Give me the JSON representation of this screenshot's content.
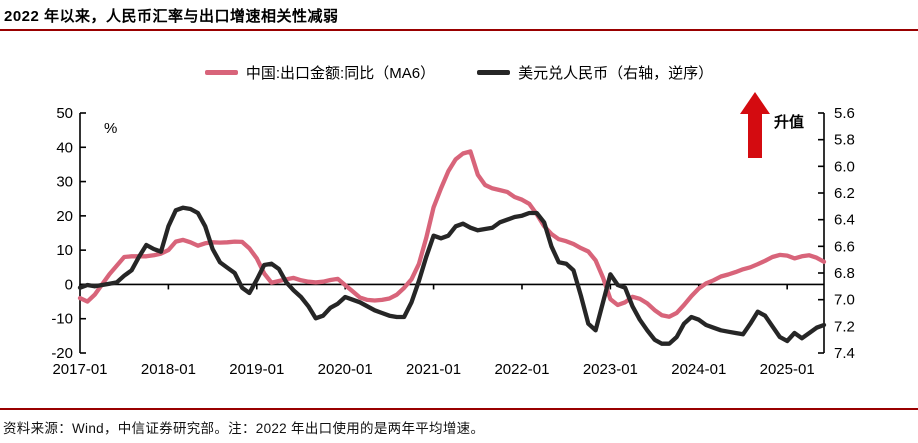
{
  "title": "2022 年以来，人民币汇率与出口增速相关性减弱",
  "source_note": "资料来源：Wind，中信证券研究部。注：2022 年出口使用的是两年平均增速。",
  "colors": {
    "accent_rule": "#990000",
    "export_line": "#d8647a",
    "usdcny_line": "#262626",
    "arrow_red": "#d40b10",
    "text": "#000000"
  },
  "chart_data": {
    "type": "line",
    "grid": false,
    "legend_position": "top",
    "x": [
      "2017-01",
      "2017-02",
      "2017-03",
      "2017-04",
      "2017-05",
      "2017-06",
      "2017-07",
      "2017-08",
      "2017-09",
      "2017-10",
      "2017-11",
      "2017-12",
      "2018-01",
      "2018-02",
      "2018-03",
      "2018-04",
      "2018-05",
      "2018-06",
      "2018-07",
      "2018-08",
      "2018-09",
      "2018-10",
      "2018-11",
      "2018-12",
      "2019-01",
      "2019-02",
      "2019-03",
      "2019-04",
      "2019-05",
      "2019-06",
      "2019-07",
      "2019-08",
      "2019-09",
      "2019-10",
      "2019-11",
      "2019-12",
      "2020-01",
      "2020-02",
      "2020-03",
      "2020-04",
      "2020-05",
      "2020-06",
      "2020-07",
      "2020-08",
      "2020-09",
      "2020-10",
      "2020-11",
      "2020-12",
      "2021-01",
      "2021-02",
      "2021-03",
      "2021-04",
      "2021-05",
      "2021-06",
      "2021-07",
      "2021-08",
      "2021-09",
      "2021-10",
      "2021-11",
      "2021-12",
      "2022-01",
      "2022-02",
      "2022-03",
      "2022-04",
      "2022-05",
      "2022-06",
      "2022-07",
      "2022-08",
      "2022-09",
      "2022-10",
      "2022-11",
      "2022-12",
      "2023-01",
      "2023-02",
      "2023-03",
      "2023-04",
      "2023-05",
      "2023-06",
      "2023-07",
      "2023-08",
      "2023-09",
      "2023-10",
      "2023-11",
      "2023-12",
      "2024-01",
      "2024-02",
      "2024-03",
      "2024-04",
      "2024-05",
      "2024-06",
      "2024-07",
      "2024-08",
      "2024-09",
      "2024-10",
      "2024-11",
      "2024-12",
      "2025-01",
      "2025-02",
      "2025-03",
      "2025-04",
      "2025-05",
      "2025-06"
    ],
    "series": [
      {
        "name": "中国:出口金额:同比（MA6）",
        "axis": "left",
        "color": "#d8647a",
        "values": [
          -4.0,
          -5.0,
          -3.0,
          0.0,
          3.0,
          5.5,
          8.0,
          8.2,
          8.2,
          8.2,
          8.5,
          9.0,
          10.0,
          12.5,
          13.0,
          12.3,
          11.3,
          12.0,
          12.3,
          12.2,
          12.3,
          12.5,
          12.4,
          10.5,
          7.6,
          3.2,
          0.5,
          1.0,
          1.5,
          1.9,
          1.2,
          0.8,
          0.6,
          0.8,
          1.3,
          1.6,
          -0.2,
          -2.0,
          -3.8,
          -4.5,
          -4.7,
          -4.5,
          -4.1,
          -3.0,
          -1.0,
          1.5,
          6.0,
          13.5,
          22.5,
          28.0,
          33.0,
          36.5,
          38.2,
          38.8,
          32.0,
          29.0,
          28.0,
          27.5,
          27.0,
          25.5,
          24.7,
          23.5,
          20.5,
          17.0,
          14.7,
          13.2,
          12.6,
          11.8,
          10.6,
          9.6,
          7.0,
          2.0,
          -4.3,
          -6.0,
          -5.2,
          -3.6,
          -4.2,
          -5.5,
          -7.5,
          -9.0,
          -9.4,
          -8.3,
          -6.0,
          -3.4,
          -1.2,
          0.3,
          1.2,
          2.3,
          2.9,
          3.6,
          4.4,
          5.0,
          5.9,
          6.9,
          8.0,
          8.6,
          8.4,
          7.6,
          8.2,
          8.5,
          7.8,
          6.6
        ]
      },
      {
        "name": "美元兑人民币（右轴，逆序）",
        "axis": "right",
        "color": "#262626",
        "values": [
          6.91,
          6.89,
          6.9,
          6.89,
          6.88,
          6.87,
          6.82,
          6.78,
          6.68,
          6.59,
          6.62,
          6.64,
          6.45,
          6.33,
          6.31,
          6.32,
          6.35,
          6.45,
          6.62,
          6.72,
          6.76,
          6.8,
          6.91,
          6.95,
          6.85,
          6.74,
          6.73,
          6.77,
          6.87,
          6.93,
          6.98,
          7.05,
          7.14,
          7.12,
          7.06,
          7.03,
          6.98,
          7.0,
          7.02,
          7.05,
          7.08,
          7.1,
          7.12,
          7.13,
          7.13,
          7.02,
          6.86,
          6.68,
          6.52,
          6.54,
          6.52,
          6.45,
          6.43,
          6.46,
          6.48,
          6.47,
          6.46,
          6.42,
          6.4,
          6.38,
          6.37,
          6.35,
          6.35,
          6.42,
          6.6,
          6.72,
          6.73,
          6.78,
          6.97,
          7.18,
          7.23,
          7.02,
          6.81,
          6.89,
          6.91,
          7.05,
          7.15,
          7.23,
          7.3,
          7.33,
          7.33,
          7.28,
          7.18,
          7.13,
          7.15,
          7.19,
          7.21,
          7.23,
          7.24,
          7.25,
          7.26,
          7.18,
          7.09,
          7.12,
          7.2,
          7.28,
          7.31,
          7.25,
          7.29,
          7.25,
          7.21,
          7.19
        ]
      }
    ],
    "left_axis": {
      "label": "%",
      "min": -20,
      "max": 50,
      "ticks": [
        50,
        40,
        30,
        20,
        10,
        0,
        -10,
        -20
      ]
    },
    "right_axis": {
      "min": 5.6,
      "max": 7.4,
      "inverted": true,
      "ticks": [
        5.6,
        5.8,
        6.0,
        6.2,
        6.4,
        6.6,
        6.8,
        7.0,
        7.2,
        7.4
      ]
    },
    "x_tick_labels": [
      "2017-01",
      "2018-01",
      "2019-01",
      "2020-01",
      "2021-01",
      "2022-01",
      "2023-01",
      "2024-01",
      "2025-01"
    ],
    "annotation": {
      "arrow": "up",
      "text": "升值",
      "color": "#d40b10"
    }
  }
}
